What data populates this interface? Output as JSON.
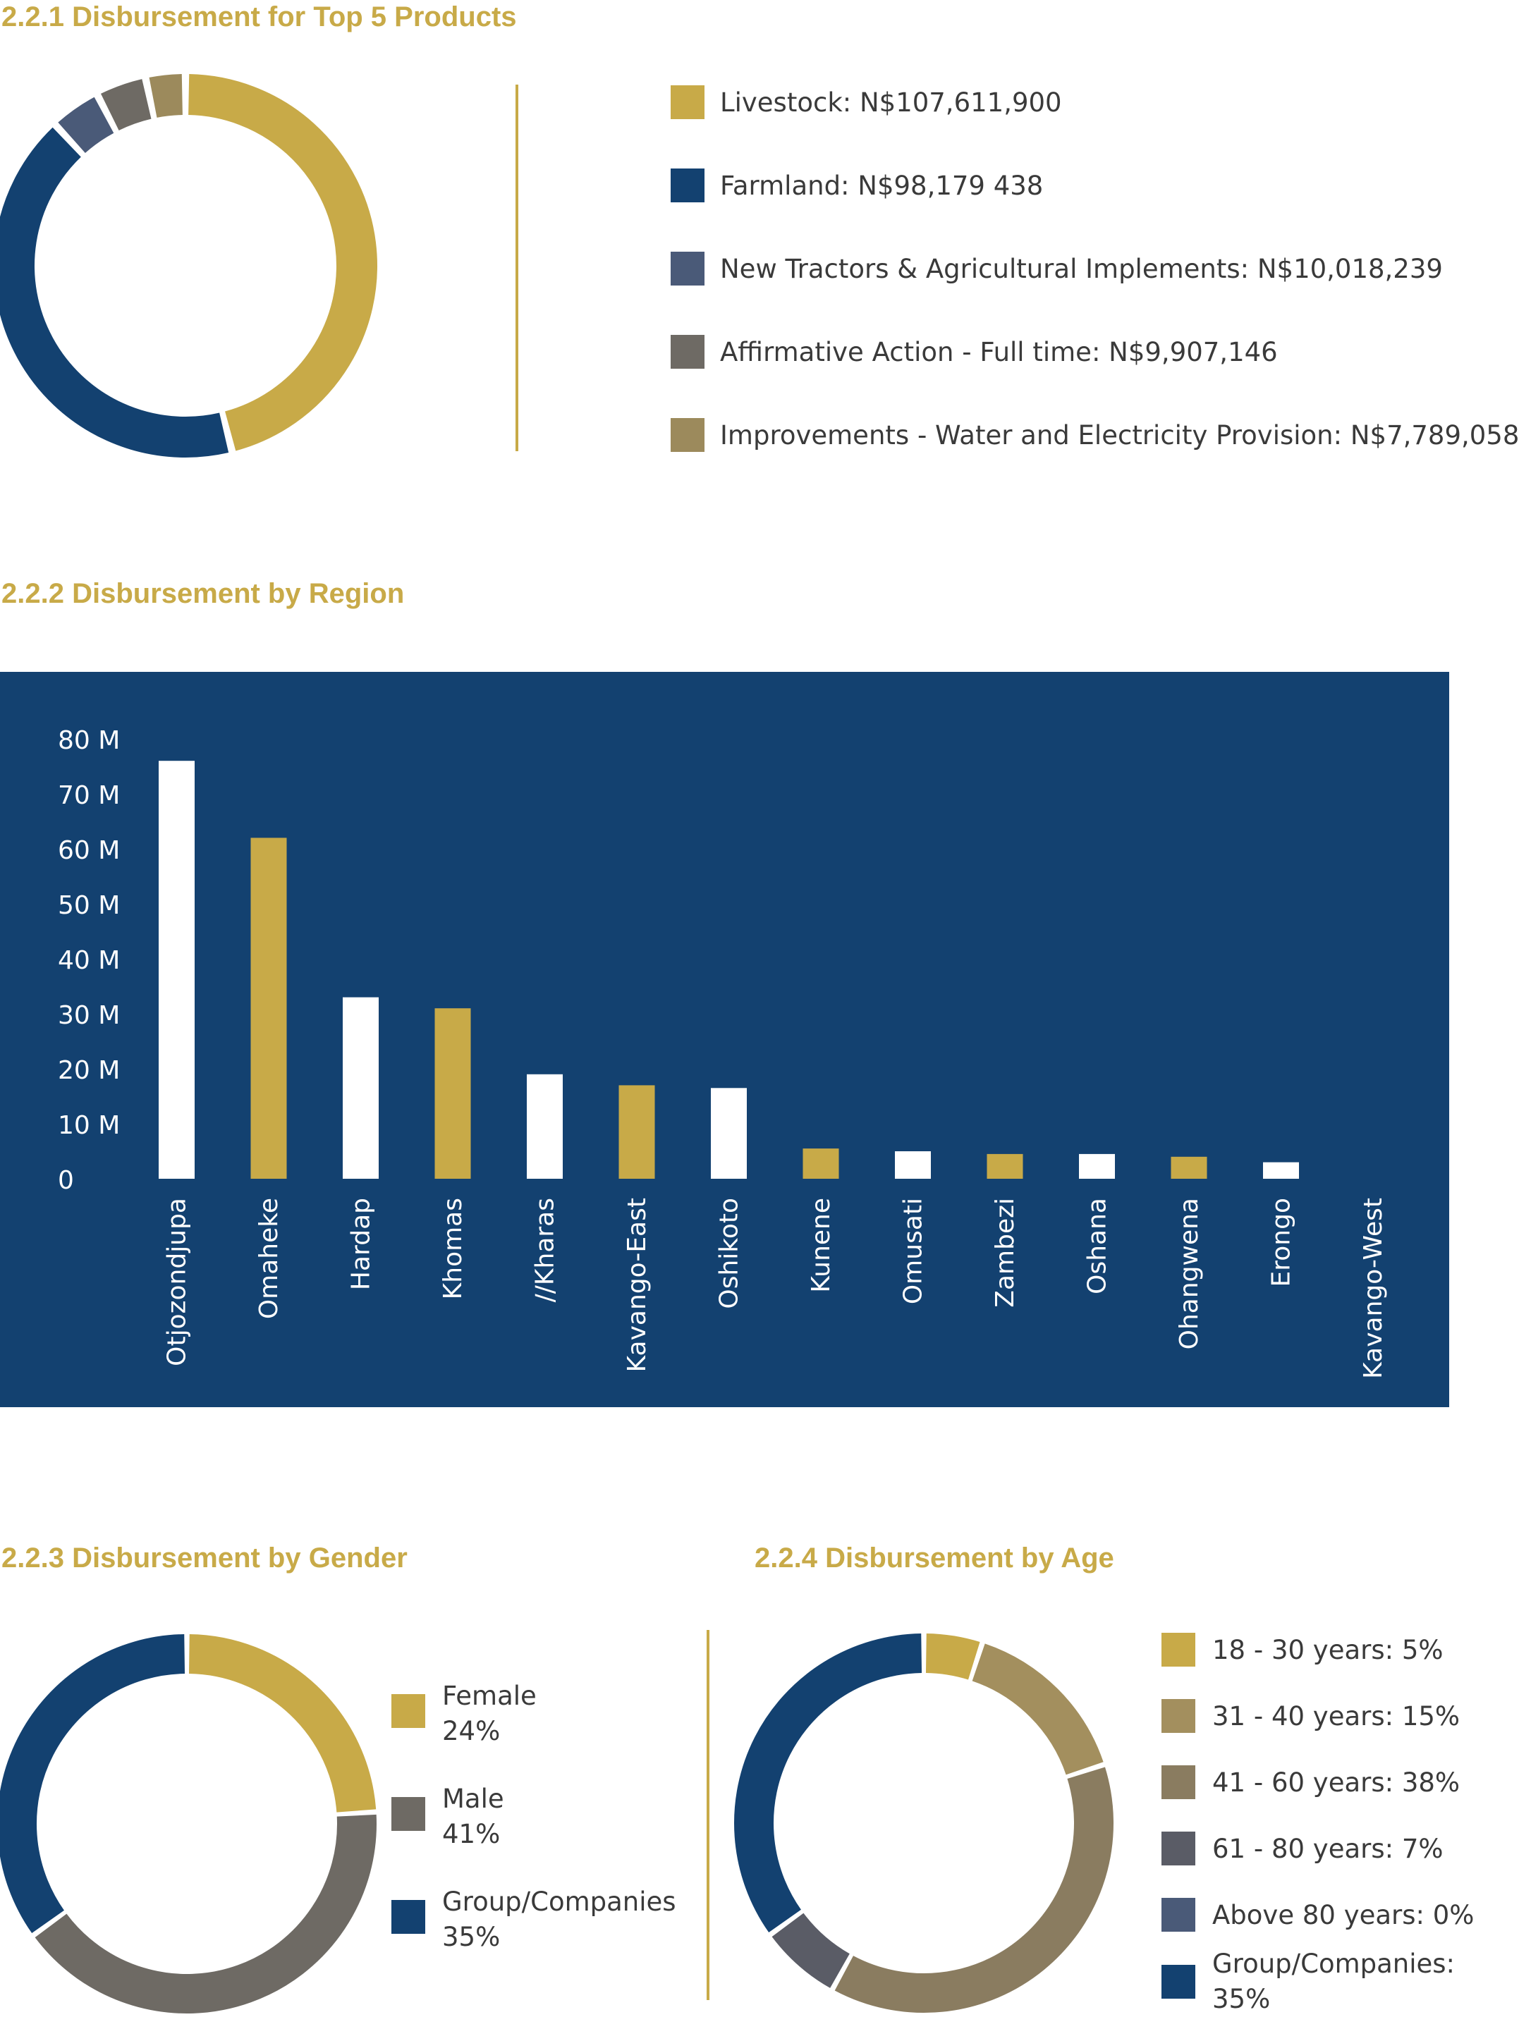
{
  "headings": {
    "products": "2.2.1 Disbursement for Top 5 Products",
    "region": "2.2.2 Disbursement by Region",
    "gender": "2.2.3 Disbursement by Gender",
    "age": "2.2.4 Disbursement by Age"
  },
  "colors": {
    "gold": "#c8aa48",
    "navy": "#134170",
    "slate": "#4a5a78",
    "grey": "#6e6a64",
    "khaki": "#9c8a5c",
    "taupe": "#8a7c60",
    "darkslate": "#5a5c66",
    "white": "#ffffff"
  },
  "chart_data": [
    {
      "id": "products",
      "type": "pie",
      "title": "2.2.1 Disbursement for Top 5 Products",
      "slices": [
        {
          "label": "Livestock: N$107,611,900",
          "value": 107611900,
          "color": "#c8aa48"
        },
        {
          "label": "Farmland: N$98,179 438",
          "value": 98179438,
          "color": "#134170"
        },
        {
          "label": "New Tractors & Agricultural Implements: N$10,018,239",
          "value": 10018239,
          "color": "#4a5a78"
        },
        {
          "label": "Affirmative Action - Full time: N$9,907,146",
          "value": 9907146,
          "color": "#6e6a64"
        },
        {
          "label": "Improvements - Water and Electricity Provision: N$7,789,058",
          "value": 7789058,
          "color": "#9c8a5c"
        }
      ]
    },
    {
      "id": "region",
      "type": "bar",
      "title": "2.2.2 Disbursement by Region",
      "categories": [
        "Otjozondjupa",
        "Omaheke",
        "Hardap",
        "Khomas",
        "//Kharas",
        "Kavango-East",
        "Oshikoto",
        "Kunene",
        "Omusati",
        "Zambezi",
        "Oshana",
        "Ohangwena",
        "Erongo",
        "Kavango-West"
      ],
      "values": [
        76,
        62,
        33,
        31,
        19,
        17,
        16.5,
        5.5,
        5,
        4.5,
        4.5,
        4,
        3,
        0
      ],
      "yticks": [
        "0",
        "10 M",
        "20 M",
        "30 M",
        "40 M",
        "50 M",
        "60 M",
        "70 M",
        "80 M"
      ],
      "ylim": [
        0,
        80
      ],
      "colors": [
        "#ffffff",
        "#c8aa48"
      ]
    },
    {
      "id": "gender",
      "type": "pie",
      "title": "2.2.3 Disbursement by Gender",
      "slices": [
        {
          "label": "Female",
          "pct": "24%",
          "value": 24,
          "color": "#c8aa48"
        },
        {
          "label": "Male",
          "pct": "41%",
          "value": 41,
          "color": "#6e6a64"
        },
        {
          "label": "Group/Companies",
          "pct": "35%",
          "value": 35,
          "color": "#134170"
        }
      ]
    },
    {
      "id": "age",
      "type": "pie",
      "title": "2.2.4 Disbursement by Age",
      "slices": [
        {
          "label": "18 - 30 years: 5%",
          "value": 5,
          "color": "#c8aa48"
        },
        {
          "label": "31 - 40 years: 15%",
          "value": 15,
          "color": "#a38f5e"
        },
        {
          "label": "41 - 60 years: 38%",
          "value": 38,
          "color": "#8a7c60"
        },
        {
          "label": "61 - 80 years: 7%",
          "value": 7,
          "color": "#5a5c66"
        },
        {
          "label": "Above 80 years: 0%",
          "value": 0,
          "color": "#4a5a78"
        },
        {
          "label": "Group/Companies: 35%",
          "value": 35,
          "color": "#134170"
        }
      ]
    }
  ]
}
